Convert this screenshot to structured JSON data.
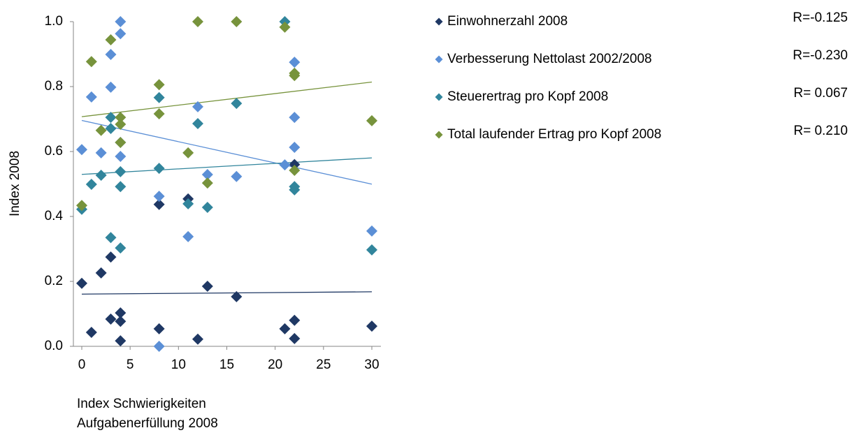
{
  "chart_data": {
    "type": "scatter",
    "ylabel": "Index 2008",
    "xlabel": [
      "Index Schwierigkeiten",
      "Aufgabenerfüllung 2008"
    ],
    "xlim": [
      0,
      30
    ],
    "xticks": [
      0,
      5,
      10,
      15,
      20,
      25,
      30
    ],
    "ylim": [
      0,
      1
    ],
    "yticks": [
      {
        "value": 0,
        "label": "0.0"
      },
      0.2,
      0.4,
      0.6,
      0.8,
      {
        "value": 1,
        "label": "1.0"
      }
    ],
    "trendlines": true,
    "series": [
      {
        "name": "Einwohnerzahl 2008",
        "color": "#1f3864",
        "r_label": "R=-0.125",
        "x": [
          0,
          1,
          2,
          3,
          3,
          4,
          4,
          4,
          8,
          8,
          11,
          12,
          13,
          16,
          21,
          22,
          22,
          22,
          30
        ],
        "values": [
          0.194,
          0.043,
          0.226,
          0.275,
          0.084,
          0.103,
          0.077,
          0.017,
          0.437,
          0.054,
          0.454,
          0.022,
          0.185,
          0.153,
          0.054,
          0.56,
          0.08,
          0.024,
          0.062
        ]
      },
      {
        "name": "Verbesserung Nettolast 2002/2008",
        "color": "#5b8fd6",
        "r_label": "R=-0.230",
        "x": [
          0,
          1,
          2,
          3,
          3,
          4,
          4,
          4,
          4,
          8,
          8,
          11,
          12,
          13,
          16,
          21,
          22,
          22,
          22,
          30
        ],
        "values": [
          0.606,
          0.768,
          0.596,
          0.899,
          0.798,
          1.0,
          0.963,
          0.628,
          0.585,
          0.462,
          0.0,
          0.338,
          0.738,
          0.529,
          0.523,
          0.559,
          0.875,
          0.705,
          0.613,
          0.355
        ]
      },
      {
        "name": "Steuerertrag pro Kopf 2008",
        "color": "#31859c",
        "r_label": "R= 0.067",
        "x": [
          0,
          1,
          2,
          3,
          3,
          3,
          4,
          4,
          4,
          8,
          8,
          11,
          12,
          13,
          16,
          21,
          22,
          22,
          30
        ],
        "values": [
          0.422,
          0.499,
          0.527,
          0.705,
          0.671,
          0.335,
          0.538,
          0.492,
          0.303,
          0.766,
          0.548,
          0.439,
          0.686,
          0.428,
          0.748,
          1.0,
          0.492,
          0.482,
          0.297
        ]
      },
      {
        "name": "Total laufender Ertrag pro Kopf 2008",
        "color": "#77933c",
        "r_label": "R= 0.210",
        "x": [
          0,
          1,
          2,
          3,
          4,
          4,
          4,
          8,
          8,
          11,
          12,
          13,
          16,
          21,
          22,
          22,
          22,
          30
        ],
        "values": [
          0.434,
          0.877,
          0.665,
          0.944,
          0.705,
          0.684,
          0.628,
          0.806,
          0.716,
          0.596,
          1.0,
          0.503,
          1.0,
          0.983,
          0.841,
          0.834,
          0.542,
          0.695
        ]
      }
    ]
  }
}
